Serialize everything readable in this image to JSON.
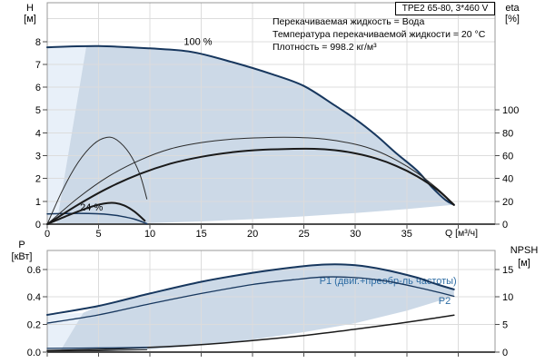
{
  "header": {
    "model": "TPE2 65-80, 3*460 V"
  },
  "info_lines": [
    "Перекачиваемая жидкость = Вода",
    "Температура перекачиваемой жидкости = 20 °C",
    "Плотность = 998.2 кг/м³"
  ],
  "colors": {
    "curve_navy": "#17375e",
    "curve_black": "#1a1a1a",
    "curve_thin_black": "#2b2b2b",
    "label_blue": "#2e6da4",
    "region_pale": "#e8f0f9",
    "region_dark": "#ccd9e7",
    "grid": "#dcdcdc",
    "frame": "#999999",
    "axis": "#4d4d4d",
    "text": "#000000"
  },
  "chart_data": [
    {
      "name": "qh-eta-chart",
      "type": "line",
      "x": {
        "label": "Q [м³/ч]",
        "min": 0,
        "max": 43.6,
        "grid": [
          5,
          10,
          15,
          20,
          25,
          30,
          35,
          40
        ],
        "ticks": [
          0,
          5,
          10,
          15,
          20,
          25,
          30,
          35,
          40
        ],
        "tick_labels": [
          "0",
          "5",
          "10",
          "15",
          "20",
          "25",
          "30",
          "35",
          ""
        ]
      },
      "y_left": {
        "name": "H",
        "unit": "[м]",
        "min": 0,
        "max": 9.7,
        "grid": [
          1,
          2,
          3,
          4,
          5,
          6,
          7,
          8,
          9
        ],
        "ticks": [
          0,
          1,
          2,
          3,
          4,
          5,
          6,
          7,
          8
        ],
        "tick_labels": [
          "0",
          "1",
          "2",
          "3",
          "4",
          "5",
          "6",
          "7",
          "8"
        ]
      },
      "y_right": {
        "name": "eta",
        "unit": "[%]",
        "min": 0,
        "max": 194,
        "ticks": [
          0,
          20,
          40,
          60,
          80,
          100
        ],
        "tick_labels": [
          "0",
          "20",
          "40",
          "60",
          "80",
          "100"
        ]
      },
      "regions": [
        {
          "name": "min-flow-band",
          "color": "#e8f0f9",
          "points": [
            [
              0,
              0
            ],
            [
              0,
              7.75
            ],
            [
              3.8,
              7.78
            ],
            [
              0.9,
              0
            ]
          ]
        },
        {
          "name": "operating-envelope",
          "color": "#ccd9e7",
          "points": [
            [
              0.9,
              0
            ],
            [
              3.8,
              7.78
            ],
            [
              10,
              7.72
            ],
            [
              14,
              7.5
            ],
            [
              18,
              7.1
            ],
            [
              22,
              6.55
            ],
            [
              25,
              6.05
            ],
            [
              28,
              5.2
            ],
            [
              30,
              4.6
            ],
            [
              32,
              3.9
            ],
            [
              34,
              3.1
            ],
            [
              36,
              2.35
            ],
            [
              37.5,
              1.6
            ],
            [
              38.8,
              1.05
            ],
            [
              39.6,
              0.85
            ],
            [
              35,
              0.66
            ],
            [
              30,
              0.49
            ],
            [
              25,
              0.34
            ],
            [
              20,
              0.22
            ],
            [
              15,
              0.12
            ],
            [
              10,
              0.05
            ],
            [
              5,
              0.015
            ],
            [
              0.9,
              0
            ]
          ]
        }
      ],
      "series": [
        {
          "name": "H at 100% speed",
          "axis": "left",
          "color": "#17375e",
          "width": 2,
          "points": [
            [
              0,
              7.75
            ],
            [
              5,
              7.8
            ],
            [
              10,
              7.7
            ],
            [
              14,
              7.55
            ],
            [
              18,
              7.1
            ],
            [
              22,
              6.55
            ],
            [
              25,
              6.05
            ],
            [
              28,
              5.2
            ],
            [
              30,
              4.6
            ],
            [
              32,
              3.9
            ],
            [
              34,
              3.1
            ],
            [
              36,
              2.35
            ],
            [
              37.5,
              1.6
            ],
            [
              38.8,
              1.05
            ],
            [
              39.6,
              0.85
            ]
          ]
        },
        {
          "name": "H at 24% speed",
          "axis": "left",
          "color": "#17375e",
          "width": 1.5,
          "points": [
            [
              0,
              0.45
            ],
            [
              2,
              0.47
            ],
            [
              4,
              0.47
            ],
            [
              5.5,
              0.44
            ],
            [
              7,
              0.36
            ],
            [
              8.5,
              0.22
            ],
            [
              9.7,
              0.02
            ]
          ]
        },
        {
          "name": "eta pump 100%",
          "axis": "right",
          "color": "#2b2b2b",
          "width": 1,
          "points": [
            [
              0,
              0
            ],
            [
              3,
              23
            ],
            [
              6,
              42
            ],
            [
              9,
              56
            ],
            [
              12,
              66
            ],
            [
              15,
              71.5
            ],
            [
              18,
              74.5
            ],
            [
              21,
              75.8
            ],
            [
              24,
              76
            ],
            [
              27,
              74.5
            ],
            [
              30,
              70
            ],
            [
              32,
              64.5
            ],
            [
              34,
              56
            ],
            [
              36,
              45
            ],
            [
              38,
              31
            ],
            [
              39.6,
              17.6
            ]
          ]
        },
        {
          "name": "eta total 100%",
          "axis": "right",
          "color": "#1a1a1a",
          "width": 2,
          "points": [
            [
              0,
              0
            ],
            [
              3,
              17
            ],
            [
              6,
              32
            ],
            [
              9,
              44
            ],
            [
              12,
              53
            ],
            [
              15,
              59
            ],
            [
              18,
              63
            ],
            [
              21,
              65.2
            ],
            [
              24,
              66
            ],
            [
              26,
              66
            ],
            [
              28,
              64.8
            ],
            [
              30,
              62
            ],
            [
              32,
              57.6
            ],
            [
              34,
              51
            ],
            [
              36,
              42
            ],
            [
              38,
              30
            ],
            [
              39.6,
              16.8
            ]
          ]
        },
        {
          "name": "eta pump 24%",
          "axis": "right",
          "color": "#2b2b2b",
          "width": 1,
          "points": [
            [
              0,
              0
            ],
            [
              1.5,
              30
            ],
            [
              3,
              54
            ],
            [
              4.5,
              70
            ],
            [
              5.8,
              76
            ],
            [
              6.8,
              73.6
            ],
            [
              8,
              62
            ],
            [
              9,
              44
            ],
            [
              9.7,
              22
            ]
          ]
        },
        {
          "name": "eta total 24%",
          "axis": "right",
          "color": "#1a1a1a",
          "width": 2,
          "points": [
            [
              0,
              0
            ],
            [
              2,
              7.6
            ],
            [
              4,
              14.4
            ],
            [
              5.5,
              18
            ],
            [
              6.5,
              18.6
            ],
            [
              7.5,
              16.4
            ],
            [
              8.5,
              11
            ],
            [
              9.5,
              3
            ]
          ]
        }
      ],
      "annotations": [
        {
          "text": "100 %",
          "q": 13.3,
          "value": 7.85,
          "color": "#000000"
        },
        {
          "text": "24 %",
          "q": 3.2,
          "value": 0.6,
          "color": "#000000"
        }
      ]
    },
    {
      "name": "power-npsh-chart",
      "type": "line",
      "x": {
        "label": "",
        "min": 0,
        "max": 43.6,
        "grid": [
          5,
          10,
          15,
          20,
          25,
          30,
          35,
          40
        ],
        "ticks": [
          0,
          5,
          10,
          15,
          20,
          25,
          30,
          35,
          40
        ],
        "tick_labels": [
          "",
          "",
          "",
          "",
          "",
          "",
          "",
          "",
          ""
        ]
      },
      "y_left": {
        "name": "P",
        "unit": "[кВт]",
        "min": 0,
        "max": 0.737,
        "grid": [
          0.2,
          0.4,
          0.6
        ],
        "ticks": [
          0,
          0.2,
          0.4,
          0.6
        ],
        "tick_labels": [
          "0.0",
          "0.2",
          "0.4",
          "0.6"
        ]
      },
      "y_right": {
        "name": "NPSH",
        "unit": "[м]",
        "min": 0,
        "max": 18.42,
        "ticks": [
          0,
          5,
          10,
          15
        ],
        "tick_labels": [
          "0",
          "5",
          "10",
          "15"
        ]
      },
      "regions": [
        {
          "name": "min-flow-band",
          "color": "#e8f0f9",
          "points": [
            [
              0,
              0
            ],
            [
              0,
              0.27
            ],
            [
              3.5,
              0.285
            ],
            [
              1.2,
              0
            ]
          ]
        },
        {
          "name": "power-envelope",
          "color": "#ccd9e7",
          "points": [
            [
              1.2,
              0
            ],
            [
              3.5,
              0.285
            ],
            [
              5,
              0.335
            ],
            [
              10,
              0.425
            ],
            [
              15,
              0.51
            ],
            [
              20,
              0.575
            ],
            [
              24,
              0.615
            ],
            [
              27,
              0.635
            ],
            [
              30,
              0.63
            ],
            [
              33,
              0.595
            ],
            [
              36,
              0.54
            ],
            [
              38,
              0.49
            ],
            [
              39.6,
              0.455
            ],
            [
              39.6,
              0.405
            ],
            [
              35,
              0.3
            ],
            [
              30,
              0.21
            ],
            [
              25,
              0.145
            ],
            [
              20,
              0.09
            ],
            [
              15,
              0.05
            ],
            [
              10,
              0.02
            ],
            [
              5,
              0.005
            ],
            [
              1.2,
              0
            ]
          ]
        }
      ],
      "series": [
        {
          "name": "P1 100%",
          "axis": "left",
          "color": "#17375e",
          "width": 2,
          "points": [
            [
              0,
              0.27
            ],
            [
              5,
              0.335
            ],
            [
              10,
              0.425
            ],
            [
              15,
              0.51
            ],
            [
              20,
              0.575
            ],
            [
              24,
              0.615
            ],
            [
              27,
              0.635
            ],
            [
              30,
              0.63
            ],
            [
              33,
              0.595
            ],
            [
              36,
              0.54
            ],
            [
              38,
              0.49
            ],
            [
              39.6,
              0.455
            ]
          ]
        },
        {
          "name": "P2 100%",
          "axis": "left",
          "color": "#17375e",
          "width": 1.3,
          "points": [
            [
              0,
              0.21
            ],
            [
              5,
              0.27
            ],
            [
              10,
              0.35
            ],
            [
              15,
              0.425
            ],
            [
              20,
              0.49
            ],
            [
              24,
              0.525
            ],
            [
              27,
              0.545
            ],
            [
              30,
              0.54
            ],
            [
              33,
              0.515
            ],
            [
              36,
              0.47
            ],
            [
              38,
              0.435
            ],
            [
              39.6,
              0.405
            ]
          ]
        },
        {
          "name": "NPSH",
          "axis": "right",
          "color": "#1a1a1a",
          "width": 1.5,
          "points": [
            [
              0,
              0.3
            ],
            [
              5,
              0.5
            ],
            [
              10,
              0.85
            ],
            [
              15,
              1.35
            ],
            [
              20,
              2.1
            ],
            [
              25,
              3.0
            ],
            [
              30,
              4.15
            ],
            [
              34,
              5.15
            ],
            [
              37,
              5.95
            ],
            [
              39.6,
              6.7
            ]
          ]
        },
        {
          "name": "P1 24%",
          "axis": "left",
          "color": "#17375e",
          "width": 1.3,
          "points": [
            [
              0,
              0.027
            ],
            [
              5,
              0.03
            ],
            [
              9.7,
              0.034
            ]
          ]
        },
        {
          "name": "P2 24%",
          "axis": "left",
          "color": "#1a1a1a",
          "width": 1,
          "points": [
            [
              0,
              0.006
            ],
            [
              5,
              0.01
            ],
            [
              9.7,
              0.017
            ]
          ]
        }
      ],
      "annotations": [
        {
          "text": "P1 (двиг.+преобр-ль частоты)",
          "q": 26.5,
          "value": 0.493,
          "color": "#2e6da4"
        },
        {
          "text": "P2",
          "q": 38.1,
          "value": 0.35,
          "color": "#2e6da4"
        }
      ]
    }
  ]
}
